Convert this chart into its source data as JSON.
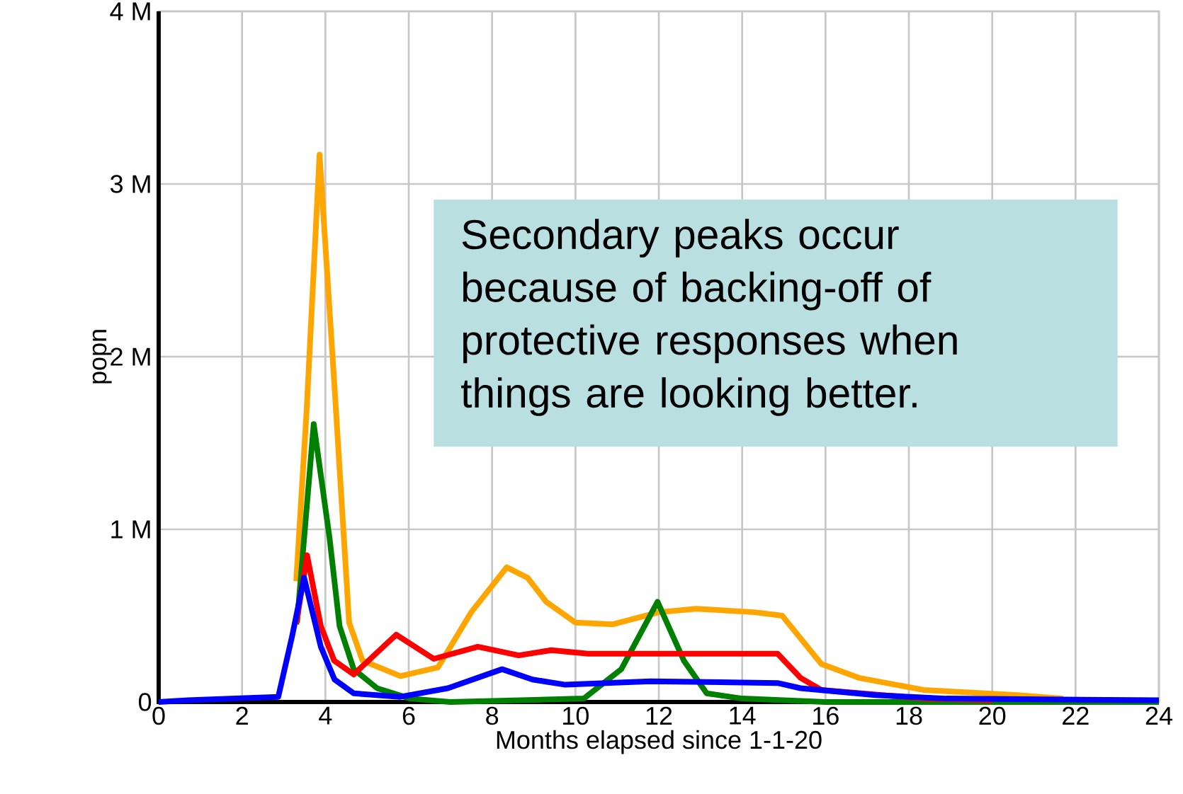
{
  "chart_data": {
    "type": "line",
    "xlabel": "Months elapsed since 1-1-20",
    "ylabel": "popn",
    "annotations": [
      "Secondary peaks occur because of backing-off of protective responses when things are looking better."
    ],
    "xlim": [
      0,
      24
    ],
    "ylim": [
      0,
      4
    ],
    "xticks": [
      0,
      2,
      4,
      6,
      8,
      10,
      12,
      14,
      16,
      18,
      20,
      22,
      24
    ],
    "yticks": [
      0,
      {
        "value": 1,
        "label": "1 M"
      },
      {
        "value": 2,
        "label": "2 M"
      },
      {
        "value": 3,
        "label": "3 M"
      },
      {
        "value": 4,
        "label": "4 M"
      }
    ],
    "grid": true,
    "line_style": "solid",
    "marker": "none",
    "series": [
      {
        "color": "#ffa500",
        "x": [
          3.3,
          3.55,
          3.86,
          4.22,
          4.57,
          4.89,
          5.8,
          6.7,
          7.5,
          8.35,
          8.85,
          9.3,
          10.0,
          10.9,
          12.0,
          12.9,
          14.3,
          14.96,
          15.9,
          16.8,
          18.35,
          20.6,
          21.7
        ],
        "values": [
          0.7,
          1.69,
          3.17,
          1.82,
          0.46,
          0.24,
          0.15,
          0.2,
          0.52,
          0.78,
          0.72,
          0.58,
          0.46,
          0.45,
          0.52,
          0.54,
          0.52,
          0.5,
          0.22,
          0.14,
          0.07,
          0.04,
          0.02
        ]
      },
      {
        "color": "#008000",
        "x": [
          3.32,
          3.72,
          4.1,
          4.34,
          4.68,
          5.24,
          6.03,
          7.0,
          10.2,
          11.1,
          11.97,
          12.6,
          13.15,
          14.0,
          16.0,
          24
        ],
        "values": [
          0.46,
          1.61,
          0.95,
          0.44,
          0.19,
          0.08,
          0.02,
          0.0,
          0.02,
          0.19,
          0.58,
          0.24,
          0.05,
          0.02,
          0.0,
          0.0
        ]
      },
      {
        "color": "#ff0000",
        "x": [
          3.3,
          3.56,
          3.89,
          4.21,
          4.68,
          5.7,
          6.6,
          7.66,
          8.64,
          9.42,
          10.3,
          14.85,
          15.4,
          15.9,
          18.35,
          20.0
        ],
        "values": [
          0.45,
          0.85,
          0.44,
          0.24,
          0.16,
          0.39,
          0.25,
          0.32,
          0.27,
          0.3,
          0.28,
          0.28,
          0.14,
          0.07,
          0.02,
          0.01
        ]
      },
      {
        "color": "#0000ff",
        "x": [
          0,
          0.7,
          2.87,
          3.2,
          3.49,
          3.89,
          4.22,
          4.68,
          5.8,
          6.94,
          8.24,
          8.97,
          9.76,
          11.8,
          14.85,
          15.4,
          17.2,
          18.9,
          24
        ],
        "values": [
          0,
          0.01,
          0.03,
          0.38,
          0.72,
          0.32,
          0.13,
          0.05,
          0.03,
          0.08,
          0.19,
          0.13,
          0.1,
          0.12,
          0.11,
          0.08,
          0.04,
          0.02,
          0.01
        ]
      }
    ]
  }
}
